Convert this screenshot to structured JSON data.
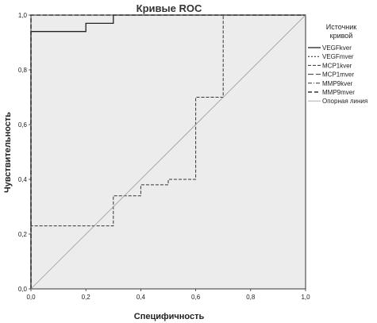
{
  "chart_data": {
    "type": "line",
    "title": "Кривые ROC",
    "xlabel": "Специфичность",
    "ylabel": "Чувствительность",
    "xlim": [
      0,
      1
    ],
    "ylim": [
      0,
      1
    ],
    "x_ticks": [
      "0,0",
      "0,2",
      "0,4",
      "0,6",
      "0,8",
      "1,0"
    ],
    "y_ticks": [
      "0,0",
      "0,2",
      "0,4",
      "0,6",
      "0,8",
      "1,0"
    ],
    "grid": false,
    "legend_position": "right",
    "legend_title_lines": [
      "Источник",
      "кривой"
    ],
    "background_color": "#ececec",
    "series": [
      {
        "name": "VEGFkver",
        "dash": "solid",
        "color": "#222222",
        "x": [
          0,
          0,
          0.2,
          0.2,
          0.3,
          0.3,
          1
        ],
        "y": [
          0,
          0.94,
          0.94,
          0.97,
          0.97,
          1,
          1
        ]
      },
      {
        "name": "VEGFmver",
        "dash": "short",
        "color": "#222222",
        "x": [
          0,
          0,
          1
        ],
        "y": [
          0,
          1,
          1
        ]
      },
      {
        "name": "MCP1kver",
        "dash": "dash",
        "color": "#333333",
        "x": [
          0,
          0,
          0.3,
          0.3,
          0.4,
          0.4,
          0.5,
          0.5,
          0.6,
          0.6,
          0.7,
          0.7,
          1
        ],
        "y": [
          0,
          0.23,
          0.23,
          0.34,
          0.34,
          0.38,
          0.38,
          0.4,
          0.4,
          0.7,
          0.7,
          1,
          1
        ]
      },
      {
        "name": "MCP1mver",
        "dash": "longdash",
        "color": "#333333",
        "x": [
          0,
          0,
          1
        ],
        "y": [
          0,
          1,
          1
        ]
      },
      {
        "name": "MMP9kver",
        "dash": "dashdot",
        "color": "#333333",
        "x": [
          0,
          0,
          1
        ],
        "y": [
          0,
          1,
          1
        ]
      },
      {
        "name": "MMP9mver",
        "dash": "bolddash",
        "color": "#333333",
        "x": [
          0,
          0,
          1
        ],
        "y": [
          0,
          1,
          1
        ]
      },
      {
        "name": "Опорная линия",
        "dash": "solid",
        "color": "#9a9a9a",
        "x": [
          0,
          1
        ],
        "y": [
          0,
          1
        ]
      }
    ]
  }
}
